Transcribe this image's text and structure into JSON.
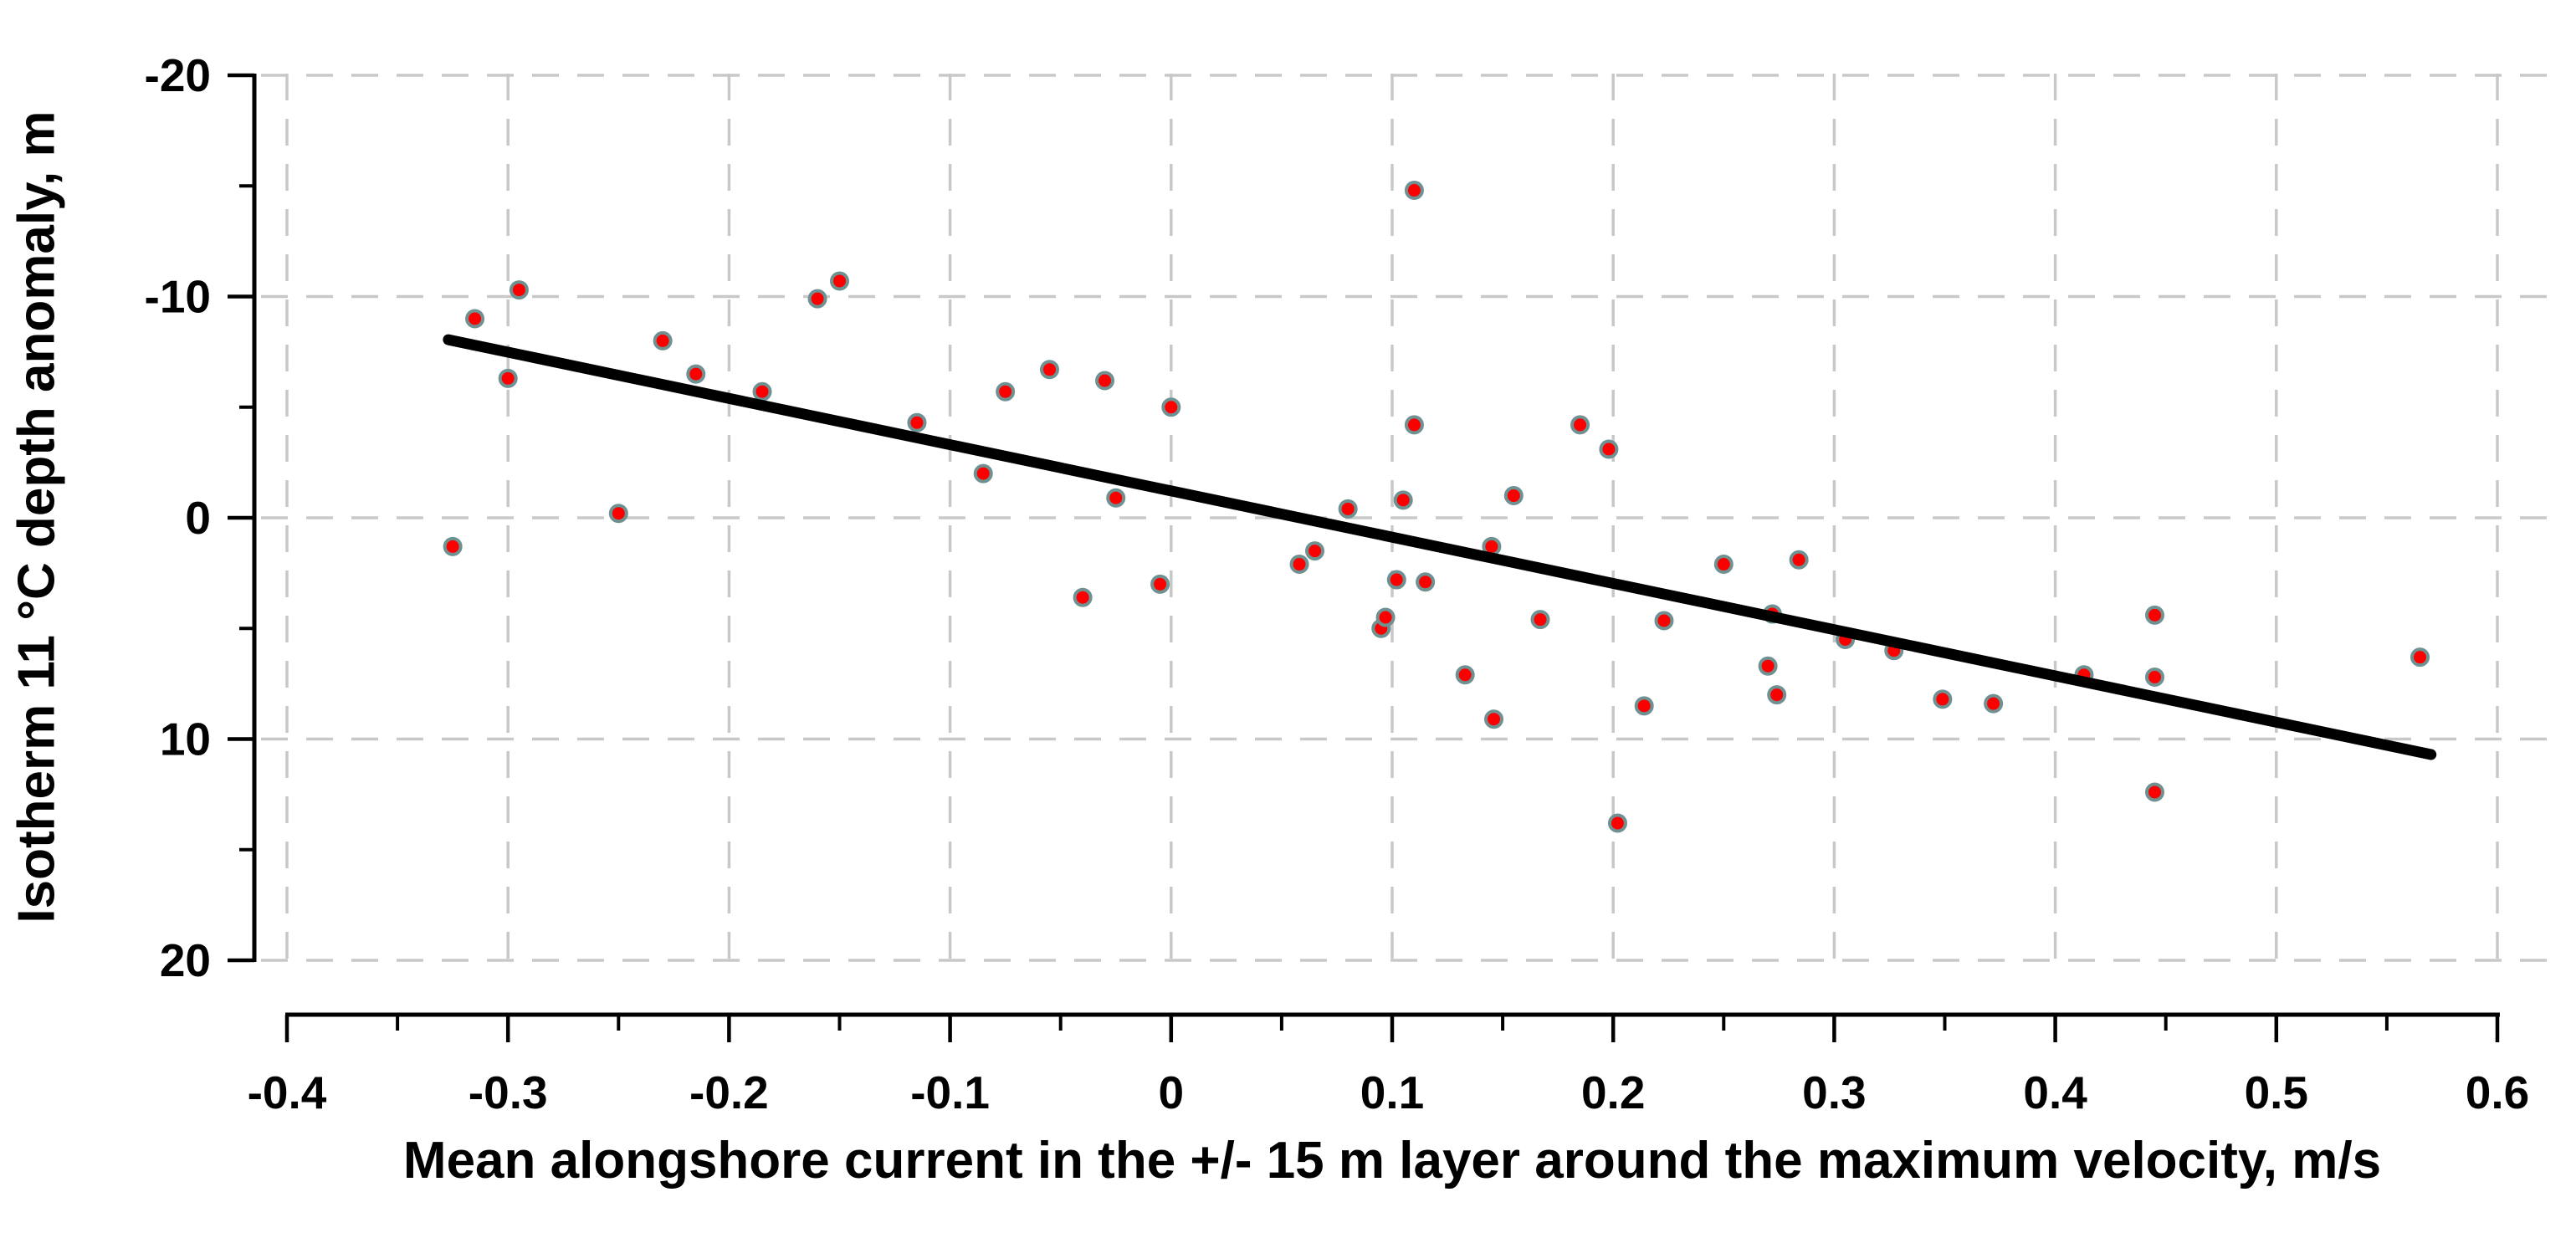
{
  "chart_data": {
    "type": "scatter",
    "title": "",
    "xlabel": "Mean alongshore current in the +/- 15 m layer around the maximum velocity, m/s",
    "ylabel": "Isotherm 11 °C depth anomaly, m",
    "xlim": [
      -0.4,
      0.6
    ],
    "ylim": [
      -20,
      20
    ],
    "y_axis_inverted": true,
    "legend": "none",
    "grid": "dashed gray lines at every major tick on both axes",
    "x_major_ticks": [
      -0.4,
      -0.3,
      -0.2,
      -0.1,
      0,
      0.1,
      0.2,
      0.3,
      0.4,
      0.5,
      0.6
    ],
    "x_tick_labels": [
      "-0.4",
      "-0.3",
      "-0.2",
      "-0.1",
      "0",
      "0.1",
      "0.2",
      "0.3",
      "0.4",
      "0.5",
      "0.6"
    ],
    "x_minor_ticks": [
      -0.35,
      -0.25,
      -0.15,
      -0.05,
      0.05,
      0.15,
      0.25,
      0.35,
      0.45,
      0.55
    ],
    "y_major_ticks": [
      -20,
      -10,
      0,
      10,
      20
    ],
    "y_tick_labels": [
      "-20",
      "-10",
      "0",
      "10",
      "20"
    ],
    "y_minor_ticks": [
      -15,
      -5,
      5,
      15
    ],
    "points": [
      [
        -0.325,
        1.3
      ],
      [
        -0.315,
        -9.0
      ],
      [
        -0.3,
        -6.3
      ],
      [
        -0.295,
        -10.3
      ],
      [
        -0.25,
        -0.2
      ],
      [
        -0.23,
        -8.0
      ],
      [
        -0.215,
        -6.5
      ],
      [
        -0.185,
        -5.7
      ],
      [
        -0.16,
        -9.9
      ],
      [
        -0.15,
        -10.7
      ],
      [
        -0.115,
        -4.3
      ],
      [
        -0.085,
        -2.0
      ],
      [
        -0.075,
        -5.7
      ],
      [
        -0.055,
        -6.7
      ],
      [
        -0.04,
        3.6
      ],
      [
        -0.03,
        -6.2
      ],
      [
        -0.025,
        -0.9
      ],
      [
        -0.005,
        3.0
      ],
      [
        0.0,
        -5.0
      ],
      [
        0.058,
        2.1
      ],
      [
        0.065,
        1.5
      ],
      [
        0.08,
        -0.4
      ],
      [
        0.095,
        5.0
      ],
      [
        0.097,
        4.5
      ],
      [
        0.102,
        2.8
      ],
      [
        0.105,
        -0.8
      ],
      [
        0.11,
        -14.8
      ],
      [
        0.11,
        -4.2
      ],
      [
        0.115,
        2.9
      ],
      [
        0.133,
        7.1
      ],
      [
        0.145,
        1.3
      ],
      [
        0.146,
        9.1
      ],
      [
        0.155,
        -1.0
      ],
      [
        0.167,
        4.6
      ],
      [
        0.185,
        -4.2
      ],
      [
        0.198,
        -3.1
      ],
      [
        0.202,
        13.8
      ],
      [
        0.214,
        8.5
      ],
      [
        0.223,
        4.65
      ],
      [
        0.25,
        2.1
      ],
      [
        0.27,
        6.7
      ],
      [
        0.272,
        4.35
      ],
      [
        0.274,
        8.0
      ],
      [
        0.284,
        1.9
      ],
      [
        0.305,
        5.5
      ],
      [
        0.327,
        6.0
      ],
      [
        0.349,
        8.2
      ],
      [
        0.372,
        8.4
      ],
      [
        0.413,
        7.1
      ],
      [
        0.445,
        4.4
      ],
      [
        0.445,
        7.2
      ],
      [
        0.445,
        12.4
      ],
      [
        0.565,
        6.3
      ]
    ],
    "trend_line": {
      "x1": -0.327,
      "y1": -8.05,
      "x2": 0.57,
      "y2": 10.7
    },
    "colors": {
      "background": "#ffffff",
      "point_fill": "#fc0000",
      "point_stroke": "#6f9191",
      "trend_line": "#000000",
      "grid": "#c8c8c8",
      "axis": "#000000",
      "text": "#000000"
    }
  }
}
